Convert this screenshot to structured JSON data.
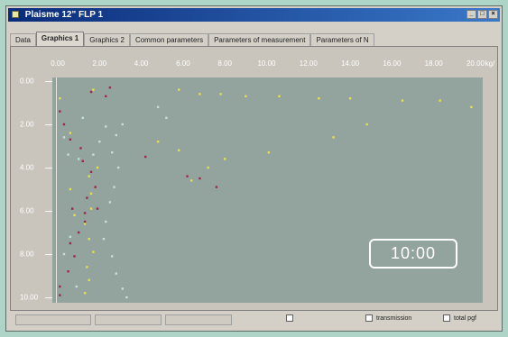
{
  "window": {
    "title": "Plaisme 12\" FLP 1"
  },
  "tabs": [
    {
      "label": "Data"
    },
    {
      "label": "Graphics 1"
    },
    {
      "label": "Graphics 2"
    },
    {
      "label": "Common parameters"
    },
    {
      "label": "Parameters of measurement"
    },
    {
      "label": "Parameters of N"
    }
  ],
  "active_tab": "Graphics 1",
  "chart_data": {
    "type": "scatter",
    "title": "",
    "xlabel": "",
    "ylabel": "",
    "x_unit_label": "kg/",
    "xlim": [
      0,
      20
    ],
    "ylim": [
      0,
      10
    ],
    "y_inverted": true,
    "x_ticks": [
      "0.00",
      "2.00",
      "4.00",
      "6.00",
      "8.00",
      "10.00",
      "12.00",
      "14.00",
      "16.00",
      "18.00",
      "20.00"
    ],
    "y_ticks": [
      "0.00",
      "2.00",
      "4.00",
      "6.00",
      "8.00",
      "10.00"
    ],
    "series": [
      {
        "color": "#e6e04a",
        "points": [
          [
            0.1,
            0.8
          ],
          [
            0.6,
            2.4
          ],
          [
            1.7,
            0.4
          ],
          [
            5.8,
            0.4
          ],
          [
            6.8,
            0.6
          ],
          [
            7.8,
            0.6
          ],
          [
            9.0,
            0.7
          ],
          [
            10.6,
            0.7
          ],
          [
            12.5,
            0.8
          ],
          [
            14.0,
            0.8
          ],
          [
            16.5,
            0.9
          ],
          [
            18.3,
            0.9
          ],
          [
            19.8,
            1.2
          ],
          [
            14.8,
            2.0
          ],
          [
            13.2,
            2.6
          ],
          [
            10.1,
            3.3
          ],
          [
            8.0,
            3.6
          ],
          [
            7.2,
            4.0
          ],
          [
            6.4,
            4.6
          ],
          [
            5.8,
            3.2
          ],
          [
            4.8,
            2.8
          ],
          [
            1.6,
            5.2
          ],
          [
            1.6,
            5.9
          ],
          [
            1.3,
            6.6
          ],
          [
            1.5,
            7.3
          ],
          [
            1.7,
            7.9
          ],
          [
            1.4,
            8.6
          ],
          [
            1.5,
            9.2
          ],
          [
            1.3,
            9.8
          ],
          [
            0.8,
            6.2
          ],
          [
            0.6,
            5.0
          ],
          [
            1.5,
            4.4
          ],
          [
            1.9,
            4.0
          ]
        ]
      },
      {
        "color": "#c2e2d2",
        "points": [
          [
            0.3,
            2.6
          ],
          [
            0.5,
            3.4
          ],
          [
            1.0,
            3.6
          ],
          [
            1.7,
            3.4
          ],
          [
            2.0,
            2.8
          ],
          [
            2.3,
            2.1
          ],
          [
            2.8,
            2.5
          ],
          [
            3.1,
            2.0
          ],
          [
            4.8,
            1.2
          ],
          [
            5.2,
            1.7
          ],
          [
            2.6,
            3.3
          ],
          [
            2.9,
            4.0
          ],
          [
            2.7,
            4.9
          ],
          [
            2.5,
            5.6
          ],
          [
            2.3,
            6.5
          ],
          [
            2.2,
            7.3
          ],
          [
            2.6,
            8.1
          ],
          [
            2.8,
            8.9
          ],
          [
            3.1,
            9.6
          ],
          [
            3.3,
            10.0
          ],
          [
            0.9,
            9.5
          ],
          [
            0.3,
            8.0
          ],
          [
            0.6,
            7.2
          ],
          [
            1.2,
            1.7
          ]
        ]
      },
      {
        "color": "#9a2a4a",
        "points": [
          [
            0.1,
            1.4
          ],
          [
            0.3,
            2.0
          ],
          [
            0.6,
            2.7
          ],
          [
            1.1,
            3.1
          ],
          [
            1.2,
            3.7
          ],
          [
            1.6,
            4.2
          ],
          [
            1.8,
            4.9
          ],
          [
            1.4,
            5.4
          ],
          [
            1.9,
            5.9
          ],
          [
            1.3,
            6.5
          ],
          [
            1.0,
            7.0
          ],
          [
            0.6,
            7.5
          ],
          [
            0.8,
            8.1
          ],
          [
            0.5,
            8.8
          ],
          [
            0.1,
            9.5
          ],
          [
            0.1,
            9.9
          ],
          [
            1.6,
            0.5
          ],
          [
            2.3,
            0.7
          ],
          [
            2.5,
            0.3
          ],
          [
            4.2,
            3.5
          ],
          [
            6.2,
            4.4
          ],
          [
            6.8,
            4.5
          ],
          [
            7.6,
            4.9
          ],
          [
            1.3,
            6.1
          ],
          [
            0.7,
            5.9
          ]
        ]
      }
    ]
  },
  "overlay": {
    "timer_text": "10:00"
  },
  "statusbar": {
    "checkboxes": [
      {
        "label": "",
        "checked": false,
        "disabled": true
      },
      {
        "label": "transmission",
        "checked": false,
        "disabled": false
      },
      {
        "label": "total pgf",
        "checked": false,
        "disabled": false
      }
    ]
  }
}
